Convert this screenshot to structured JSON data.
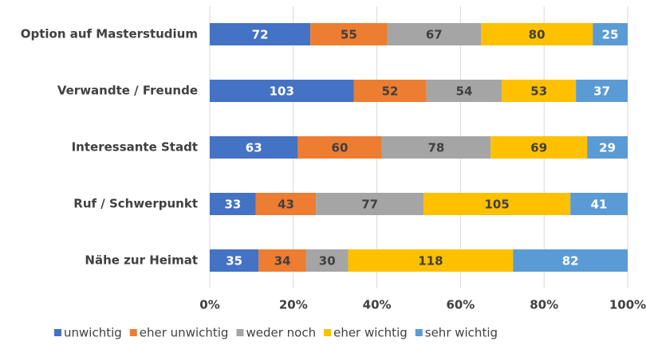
{
  "chart_data": {
    "type": "bar",
    "orientation": "horizontal",
    "stacking": "percent",
    "categories": [
      "Option auf Masterstudium",
      "Verwandte / Freunde",
      "Interessante Stadt",
      "Ruf / Schwerpunkt",
      "Nähe zur Heimat"
    ],
    "series": [
      {
        "name": "unwichtig",
        "color": "#4472c4",
        "label_color": "#ffffff",
        "values": [
          72,
          103,
          63,
          33,
          35
        ]
      },
      {
        "name": "eher unwichtig",
        "color": "#ed7d31",
        "label_color": "#404040",
        "values": [
          55,
          52,
          60,
          43,
          34
        ]
      },
      {
        "name": "weder noch",
        "color": "#a5a5a5",
        "label_color": "#404040",
        "values": [
          67,
          54,
          78,
          77,
          30
        ]
      },
      {
        "name": "eher wichtig",
        "color": "#ffc000",
        "label_color": "#404040",
        "values": [
          80,
          53,
          69,
          105,
          118
        ]
      },
      {
        "name": "sehr wichtig",
        "color": "#5b9bd5",
        "label_color": "#ffffff",
        "values": [
          25,
          37,
          29,
          41,
          82
        ]
      }
    ],
    "xlim": [
      0,
      100
    ],
    "xticks": [
      {
        "value": 0,
        "label": "0%"
      },
      {
        "value": 20,
        "label": "20%"
      },
      {
        "value": 40,
        "label": "40%"
      },
      {
        "value": 60,
        "label": "60%"
      },
      {
        "value": 80,
        "label": "80%"
      },
      {
        "value": 100,
        "label": "100%"
      }
    ],
    "grid": true,
    "legend": "bottom"
  }
}
